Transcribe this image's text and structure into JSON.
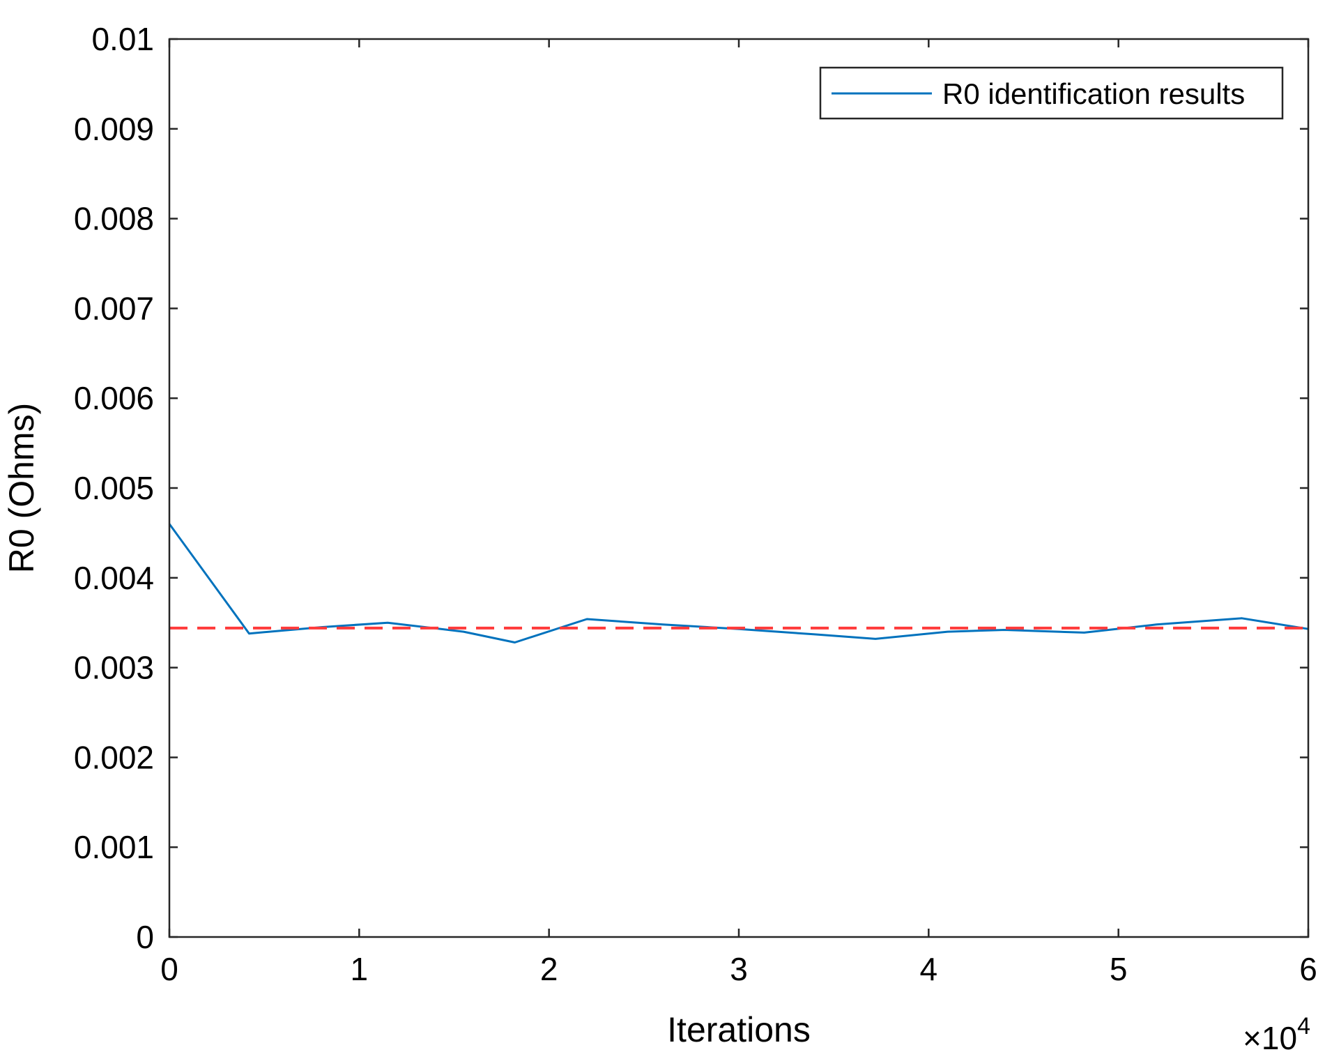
{
  "chart_data": {
    "type": "line",
    "xlabel": "Iterations",
    "ylabel": "R0 (Ohms)",
    "x_multiplier": {
      "times": "×10",
      "exponent": "4"
    },
    "xlim": [
      0,
      6
    ],
    "ylim": [
      0,
      0.01
    ],
    "x_ticks": [
      "0",
      "1",
      "2",
      "3",
      "4",
      "5",
      "6"
    ],
    "y_ticks": [
      "0",
      "0.001",
      "0.002",
      "0.003",
      "0.004",
      "0.005",
      "0.006",
      "0.007",
      "0.008",
      "0.009",
      "0.01"
    ],
    "grid": false,
    "legend": {
      "placement": "top-right",
      "entries": [
        "R0 identification results"
      ]
    },
    "series": [
      {
        "name": "R0 identification results",
        "color": "#0072BD",
        "style": "solid",
        "x": [
          0,
          0.42,
          0.8,
          1.15,
          1.55,
          1.82,
          2.2,
          2.6,
          3.0,
          3.4,
          3.72,
          4.1,
          4.4,
          4.82,
          5.2,
          5.65,
          6.0
        ],
        "y": [
          0.0046,
          0.00338,
          0.00345,
          0.0035,
          0.0034,
          0.00328,
          0.00354,
          0.00348,
          0.00343,
          0.00337,
          0.00332,
          0.0034,
          0.00342,
          0.00339,
          0.00348,
          0.00355,
          0.00343
        ]
      },
      {
        "color": "#FF3B3B",
        "style": "dashed",
        "x": [
          0,
          6
        ],
        "y": [
          0.00344,
          0.00344
        ]
      }
    ]
  }
}
